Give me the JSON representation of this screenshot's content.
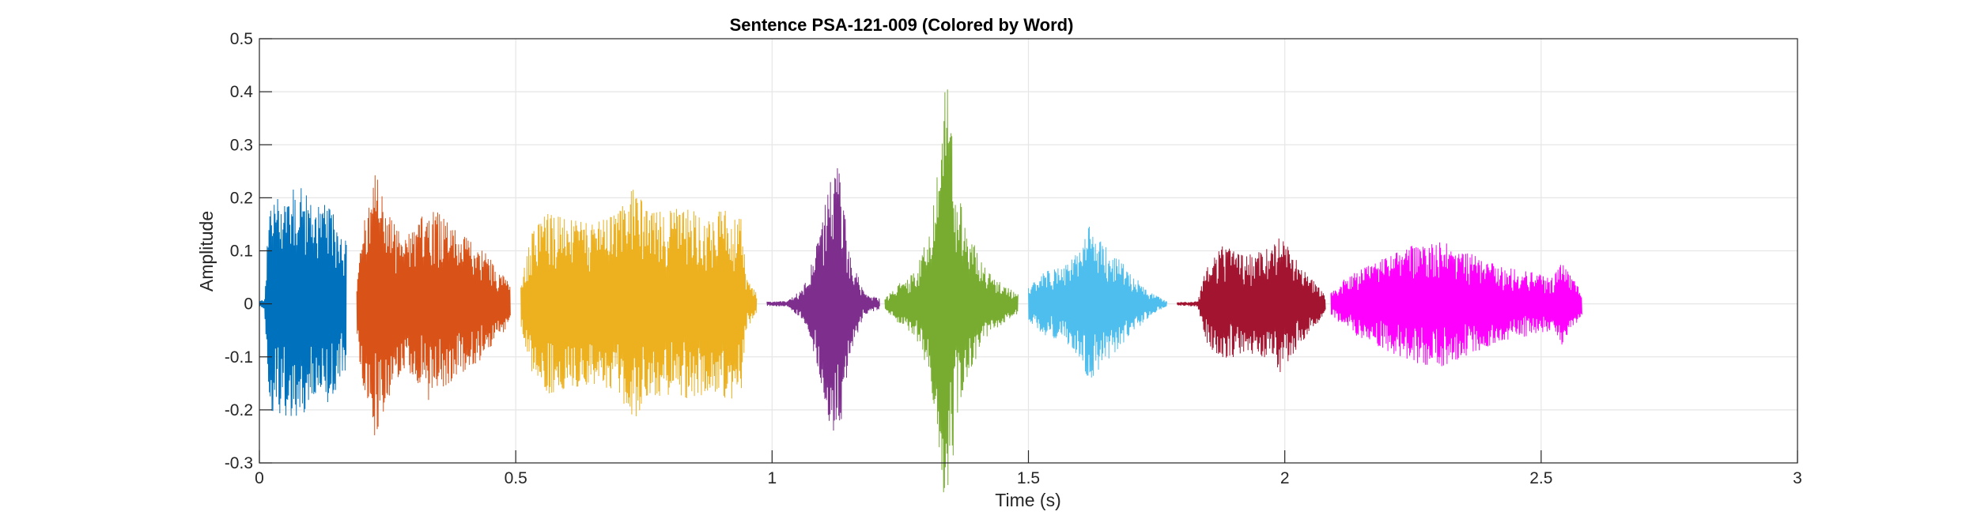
{
  "chart_data": {
    "type": "line",
    "title": "Sentence PSA-121-009 (Colored by Word)",
    "xlabel": "Time (s)",
    "ylabel": "Amplitude",
    "xlim": [
      0,
      3
    ],
    "ylim": [
      -0.3,
      0.5
    ],
    "xticks": [
      0,
      0.5,
      1,
      1.5,
      2,
      2.5,
      3
    ],
    "xtick_labels": [
      "0",
      "0.5",
      "1",
      "1.5",
      "2",
      "2.5",
      "3"
    ],
    "yticks": [
      -0.3,
      -0.2,
      -0.1,
      0,
      0.1,
      0.2,
      0.3,
      0.4,
      0.5
    ],
    "ytick_labels": [
      "-0.3",
      "-0.2",
      "-0.1",
      "0",
      "0.1",
      "0.2",
      "0.3",
      "0.4",
      "0.5"
    ],
    "grid": true,
    "series": [
      {
        "color": "#0072BD",
        "t_start": 0.0,
        "t_end": 0.17,
        "envelope": [
          [
            0.0,
            0.005
          ],
          [
            0.01,
            0.01
          ],
          [
            0.02,
            0.2
          ],
          [
            0.05,
            0.21
          ],
          [
            0.08,
            0.22
          ],
          [
            0.11,
            0.18
          ],
          [
            0.13,
            0.19
          ],
          [
            0.15,
            0.16
          ],
          [
            0.17,
            0.12
          ]
        ]
      },
      {
        "color": "#D95319",
        "t_start": 0.19,
        "t_end": 0.49,
        "envelope": [
          [
            0.19,
            0.05
          ],
          [
            0.2,
            0.15
          ],
          [
            0.22,
            0.2
          ],
          [
            0.225,
            0.25
          ],
          [
            0.25,
            0.18
          ],
          [
            0.28,
            0.12
          ],
          [
            0.31,
            0.15
          ],
          [
            0.33,
            0.19
          ],
          [
            0.35,
            0.17
          ],
          [
            0.38,
            0.14
          ],
          [
            0.41,
            0.12
          ],
          [
            0.44,
            0.1
          ],
          [
            0.46,
            0.07
          ],
          [
            0.48,
            0.05
          ],
          [
            0.49,
            0.03
          ]
        ]
      },
      {
        "color": "#EDB120",
        "t_start": 0.51,
        "t_end": 0.97,
        "envelope": [
          [
            0.51,
            0.04
          ],
          [
            0.53,
            0.13
          ],
          [
            0.56,
            0.17
          ],
          [
            0.6,
            0.16
          ],
          [
            0.65,
            0.15
          ],
          [
            0.7,
            0.17
          ],
          [
            0.73,
            0.22
          ],
          [
            0.76,
            0.17
          ],
          [
            0.82,
            0.18
          ],
          [
            0.88,
            0.17
          ],
          [
            0.92,
            0.18
          ],
          [
            0.94,
            0.16
          ],
          [
            0.95,
            0.05
          ],
          [
            0.97,
            0.02
          ]
        ]
      },
      {
        "color": "#7E2F8E",
        "t_start": 0.99,
        "t_end": 1.21,
        "envelope": [
          [
            0.99,
            0.004
          ],
          [
            1.03,
            0.005
          ],
          [
            1.06,
            0.03
          ],
          [
            1.09,
            0.12
          ],
          [
            1.11,
            0.22
          ],
          [
            1.13,
            0.27
          ],
          [
            1.15,
            0.1
          ],
          [
            1.18,
            0.02
          ],
          [
            1.21,
            0.01
          ]
        ]
      },
      {
        "color": "#77AC30",
        "t_start": 1.22,
        "t_end": 1.48,
        "envelope": [
          [
            1.22,
            0.01
          ],
          [
            1.25,
            0.04
          ],
          [
            1.28,
            0.06
          ],
          [
            1.31,
            0.15
          ],
          [
            1.33,
            0.3
          ],
          [
            1.34,
            0.44
          ],
          [
            1.36,
            0.22
          ],
          [
            1.38,
            0.14
          ],
          [
            1.42,
            0.06
          ],
          [
            1.46,
            0.03
          ],
          [
            1.48,
            0.02
          ]
        ]
      },
      {
        "color": "#4DBEEE",
        "t_start": 1.5,
        "t_end": 1.77,
        "envelope": [
          [
            1.5,
            0.03
          ],
          [
            1.53,
            0.06
          ],
          [
            1.57,
            0.07
          ],
          [
            1.6,
            0.1
          ],
          [
            1.62,
            0.15
          ],
          [
            1.65,
            0.11
          ],
          [
            1.68,
            0.08
          ],
          [
            1.71,
            0.05
          ],
          [
            1.74,
            0.02
          ],
          [
            1.77,
            0.005
          ]
        ]
      },
      {
        "color": "#A2142F",
        "t_start": 1.79,
        "t_end": 2.08,
        "envelope": [
          [
            1.79,
            0.003
          ],
          [
            1.83,
            0.005
          ],
          [
            1.85,
            0.08
          ],
          [
            1.88,
            0.11
          ],
          [
            1.92,
            0.09
          ],
          [
            1.96,
            0.1
          ],
          [
            1.99,
            0.13
          ],
          [
            2.02,
            0.09
          ],
          [
            2.05,
            0.05
          ],
          [
            2.07,
            0.03
          ],
          [
            2.08,
            0.01
          ]
        ]
      },
      {
        "color": "#FF00FF",
        "t_start": 2.09,
        "t_end": 2.58,
        "envelope": [
          [
            2.09,
            0.02
          ],
          [
            2.12,
            0.05
          ],
          [
            2.18,
            0.08
          ],
          [
            2.25,
            0.11
          ],
          [
            2.3,
            0.12
          ],
          [
            2.35,
            0.1
          ],
          [
            2.42,
            0.07
          ],
          [
            2.48,
            0.06
          ],
          [
            2.52,
            0.05
          ],
          [
            2.54,
            0.08
          ],
          [
            2.56,
            0.05
          ],
          [
            2.58,
            0.02
          ]
        ]
      }
    ]
  }
}
